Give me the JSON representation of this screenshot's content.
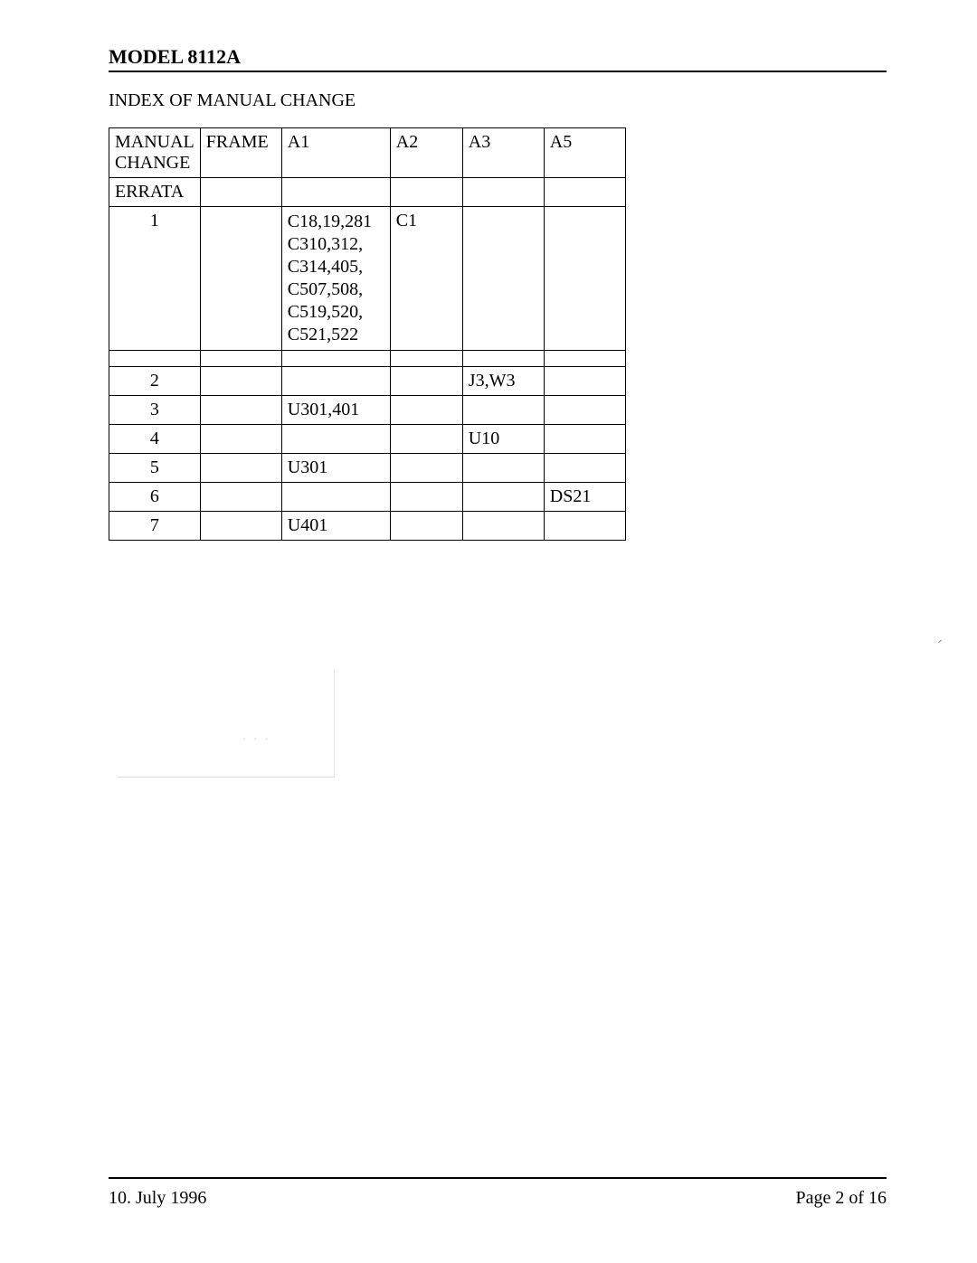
{
  "header": {
    "model": "MODEL 8112A",
    "section": "INDEX OF MANUAL CHANGE"
  },
  "table": {
    "columns": [
      "MANUAL\nCHANGE",
      "FRAME",
      "A1",
      "A2",
      "A3",
      "A5"
    ],
    "rows": [
      [
        "ERRATA",
        "",
        "",
        "",
        "",
        ""
      ],
      [
        "1",
        "",
        "C18,19,281\nC310,312,\nC314,405,\nC507,508,\nC519,520,\nC521,522",
        "C1",
        "",
        ""
      ],
      [
        "",
        "",
        "",
        "",
        "",
        ""
      ],
      [
        "2",
        "",
        "",
        "",
        "J3,W3",
        ""
      ],
      [
        "3",
        "",
        "U301,401",
        "",
        "",
        ""
      ],
      [
        "4",
        "",
        "",
        "",
        "U10",
        ""
      ],
      [
        "5",
        "",
        "U301",
        "",
        "",
        ""
      ],
      [
        "6",
        "",
        "",
        "",
        "",
        "DS21"
      ],
      [
        "7",
        "",
        "U401",
        "",
        "",
        ""
      ]
    ]
  },
  "footer": {
    "date": "10. July 1996",
    "page": "Page 2 of 16"
  }
}
